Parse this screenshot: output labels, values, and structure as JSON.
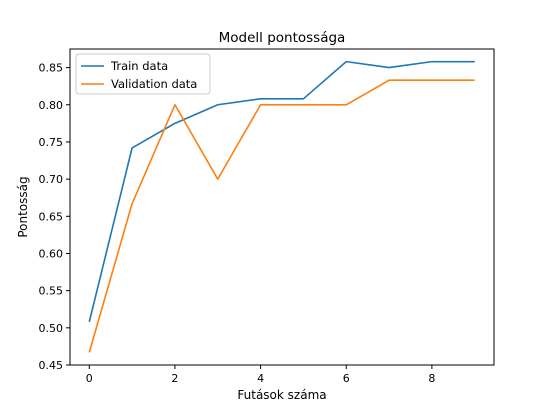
{
  "chart_data": {
    "type": "line",
    "title": "Modell pontossága",
    "xlabel": "Futások száma",
    "ylabel": "Pontosság",
    "x": [
      0,
      1,
      2,
      3,
      4,
      5,
      6,
      7,
      8,
      9
    ],
    "xlim": [
      -0.45,
      9.45
    ],
    "ylim": [
      0.45,
      0.875
    ],
    "xticks": [
      0,
      2,
      4,
      6,
      8
    ],
    "yticks": [
      0.45,
      0.5,
      0.55,
      0.6,
      0.65,
      0.7,
      0.75,
      0.8,
      0.85
    ],
    "grid": false,
    "legend_position": "top-left",
    "series": [
      {
        "name": "Train data",
        "color": "#1f77b4",
        "values": [
          0.508,
          0.742,
          0.775,
          0.8,
          0.808,
          0.808,
          0.858,
          0.85,
          0.858,
          0.858
        ]
      },
      {
        "name": "Validation data",
        "color": "#ff7f0e",
        "values": [
          0.467,
          0.667,
          0.8,
          0.7,
          0.8,
          0.8,
          0.8,
          0.833,
          0.833,
          0.833
        ]
      }
    ]
  }
}
